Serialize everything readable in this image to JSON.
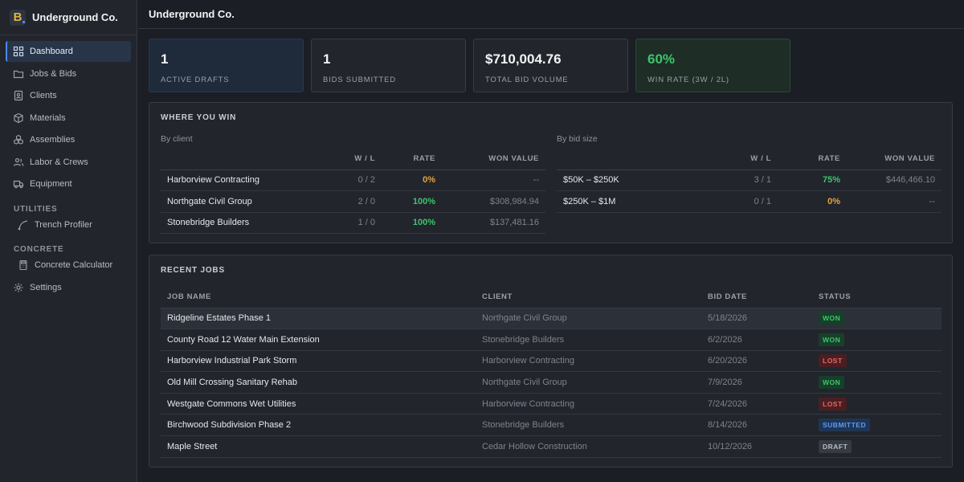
{
  "app": {
    "name": "Underground Co.",
    "logo_letter": "B"
  },
  "header": {
    "title": "Underground Co."
  },
  "sidebar": {
    "items": [
      {
        "label": "Dashboard",
        "icon": "grid-icon",
        "active": true
      },
      {
        "label": "Jobs & Bids",
        "icon": "folder-icon"
      },
      {
        "label": "Clients",
        "icon": "contact-card-icon"
      },
      {
        "label": "Materials",
        "icon": "box-icon"
      },
      {
        "label": "Assemblies",
        "icon": "boxes-icon"
      },
      {
        "label": "Labor & Crews",
        "icon": "users-icon"
      },
      {
        "label": "Equipment",
        "icon": "truck-icon"
      }
    ],
    "utilities": {
      "heading": "UTILITIES",
      "items": [
        {
          "label": "Trench Profiler",
          "icon": "curve-icon"
        }
      ]
    },
    "concrete": {
      "heading": "CONCRETE",
      "items": [
        {
          "label": "Concrete Calculator",
          "icon": "calculator-icon"
        }
      ]
    },
    "settings": {
      "label": "Settings",
      "icon": "gear-icon"
    }
  },
  "stats": [
    {
      "value": "1",
      "label": "ACTIVE DRAFTS"
    },
    {
      "value": "1",
      "label": "BIDS SUBMITTED"
    },
    {
      "value": "$710,004.76",
      "label": "TOTAL BID VOLUME"
    },
    {
      "value": "60%",
      "label": "WIN RATE (3W / 2L)"
    }
  ],
  "where_you_win": {
    "title": "WHERE YOU WIN",
    "by_client": {
      "subtitle": "By client",
      "columns": [
        "",
        "W / L",
        "RATE",
        "WON VALUE"
      ],
      "rows": [
        {
          "name": "Harborview Contracting",
          "wl": "0 / 2",
          "rate": "0%",
          "won": "--"
        },
        {
          "name": "Northgate Civil Group",
          "wl": "2 / 0",
          "rate": "100%",
          "won": "$308,984.94"
        },
        {
          "name": "Stonebridge Builders",
          "wl": "1 / 0",
          "rate": "100%",
          "won": "$137,481.16"
        }
      ]
    },
    "by_size": {
      "subtitle": "By bid size",
      "columns": [
        "",
        "W / L",
        "RATE",
        "WON VALUE"
      ],
      "rows": [
        {
          "name": "$50K – $250K",
          "wl": "3 / 1",
          "rate": "75%",
          "won": "$446,466.10"
        },
        {
          "name": "$250K – $1M",
          "wl": "0 / 1",
          "rate": "0%",
          "won": "--"
        }
      ]
    }
  },
  "recent_jobs": {
    "title": "RECENT JOBS",
    "columns": [
      "JOB NAME",
      "CLIENT",
      "BID DATE",
      "STATUS"
    ],
    "rows": [
      {
        "name": "Ridgeline Estates Phase 1",
        "client": "Northgate Civil Group",
        "date": "5/18/2026",
        "status": "WON"
      },
      {
        "name": "County Road 12 Water Main Extension",
        "client": "Stonebridge Builders",
        "date": "6/2/2026",
        "status": "WON"
      },
      {
        "name": "Harborview Industrial Park Storm",
        "client": "Harborview Contracting",
        "date": "6/20/2026",
        "status": "LOST"
      },
      {
        "name": "Old Mill Crossing Sanitary Rehab",
        "client": "Northgate Civil Group",
        "date": "7/9/2026",
        "status": "WON"
      },
      {
        "name": "Westgate Commons Wet Utilities",
        "client": "Harborview Contracting",
        "date": "7/24/2026",
        "status": "LOST"
      },
      {
        "name": "Birchwood Subdivision Phase 2",
        "client": "Stonebridge Builders",
        "date": "8/14/2026",
        "status": "SUBMITTED"
      },
      {
        "name": "Maple Street",
        "client": "Cedar Hollow Construction",
        "date": "10/12/2026",
        "status": "DRAFT"
      }
    ]
  },
  "colors": {
    "accent": "#4a8af4",
    "win": "#3ec46d",
    "warn": "#e8a33a",
    "loss": "#e86565",
    "brand": "#e0b23c"
  }
}
